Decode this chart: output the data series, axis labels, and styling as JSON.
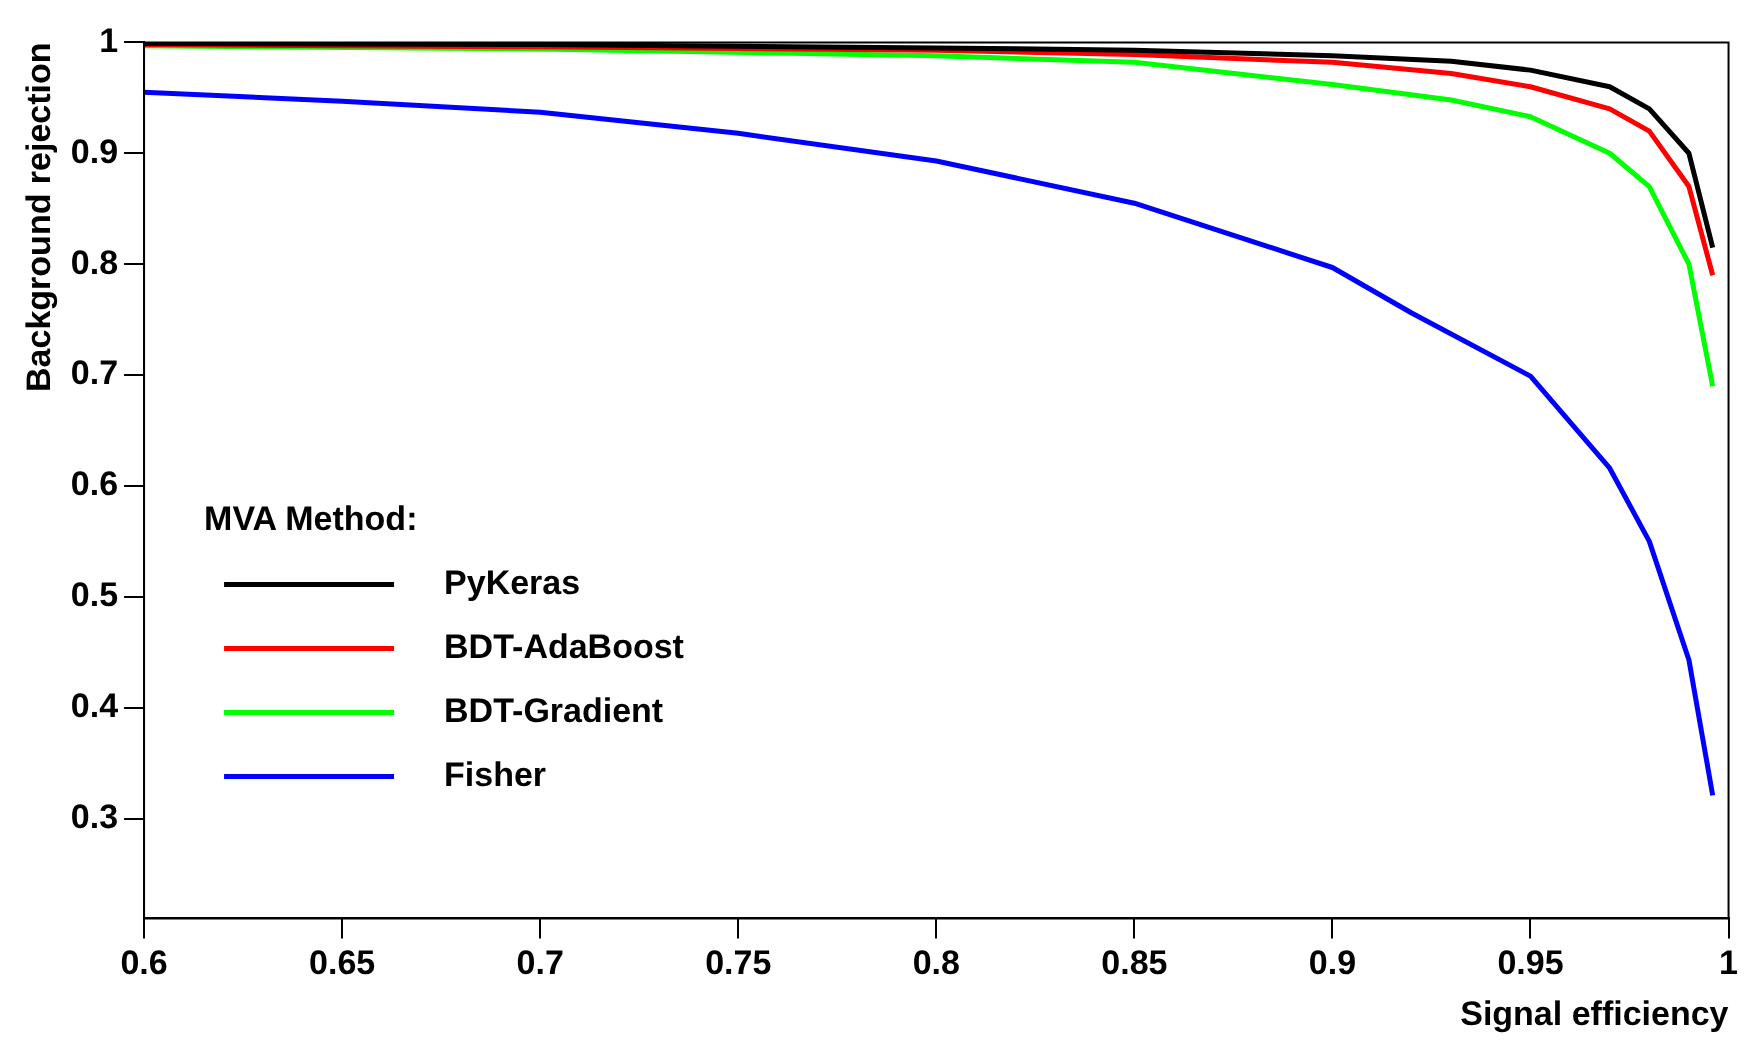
{
  "chart_data": {
    "type": "line",
    "xlabel": "Signal efficiency",
    "ylabel": "Background rejection",
    "legend_title": "MVA Method:",
    "xlim": [
      0.6,
      1
    ],
    "xticks": [
      0.6,
      0.65,
      0.7,
      0.75,
      0.8,
      0.85,
      0.9,
      0.95,
      1
    ],
    "ylim": [
      0.21,
      1
    ],
    "yticks": [
      0.3,
      0.4,
      0.5,
      0.6,
      0.7,
      0.8,
      0.9,
      1
    ],
    "grid": false,
    "legend": "bottom left",
    "marker": "none",
    "line_style": "solid",
    "series": [
      {
        "name": "PyKeras",
        "color": "#000000",
        "x": [
          0.6,
          0.7,
          0.8,
          0.85,
          0.9,
          0.93,
          0.95,
          0.97,
          0.98,
          0.99,
          0.996
        ],
        "values": [
          0.999,
          0.998,
          0.995,
          0.993,
          0.988,
          0.983,
          0.975,
          0.96,
          0.94,
          0.9,
          0.815
        ]
      },
      {
        "name": "BDT-AdaBoost",
        "color": "#ff0000",
        "x": [
          0.6,
          0.7,
          0.8,
          0.85,
          0.9,
          0.93,
          0.95,
          0.97,
          0.98,
          0.99,
          0.996
        ],
        "values": [
          0.998,
          0.996,
          0.993,
          0.989,
          0.982,
          0.972,
          0.96,
          0.94,
          0.92,
          0.87,
          0.79
        ]
      },
      {
        "name": "BDT-Gradient",
        "color": "#00ff00",
        "x": [
          0.6,
          0.7,
          0.8,
          0.85,
          0.9,
          0.93,
          0.95,
          0.97,
          0.98,
          0.99,
          0.996
        ],
        "values": [
          0.997,
          0.994,
          0.988,
          0.982,
          0.962,
          0.948,
          0.933,
          0.9,
          0.87,
          0.8,
          0.69
        ]
      },
      {
        "name": "Fisher",
        "color": "#0000ff",
        "x": [
          0.6,
          0.65,
          0.7,
          0.75,
          0.8,
          0.85,
          0.9,
          0.92,
          0.95,
          0.97,
          0.98,
          0.99,
          0.996
        ],
        "values": [
          0.955,
          0.947,
          0.937,
          0.918,
          0.893,
          0.855,
          0.797,
          0.756,
          0.699,
          0.616,
          0.55,
          0.443,
          0.321
        ]
      }
    ]
  }
}
